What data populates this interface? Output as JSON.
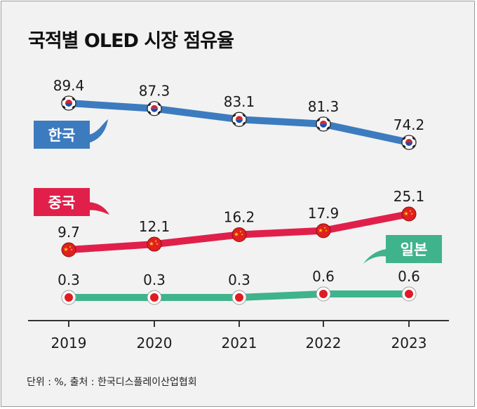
{
  "title": "국적별 OLED 시장 점유율",
  "footnote": "단위 : %, 출처 : 한국디스플레이산업협회",
  "colors": {
    "korea": "#3d7bbf",
    "china": "#e0204a",
    "japan": "#3fb38c",
    "axis": "#333333"
  },
  "chart_data": {
    "type": "line",
    "title": "국적별 OLED 시장 점유율",
    "xlabel": "",
    "ylabel": "",
    "categories": [
      "2019",
      "2020",
      "2021",
      "2022",
      "2023"
    ],
    "series": [
      {
        "key": "korea",
        "name": "한국",
        "values": [
          89.4,
          87.3,
          83.1,
          81.3,
          74.2
        ],
        "labels": [
          "89.4",
          "87.3",
          "83.1",
          "81.3",
          "74.2"
        ],
        "marker": "korea-flag"
      },
      {
        "key": "china",
        "name": "중국",
        "values": [
          9.7,
          12.1,
          16.2,
          17.9,
          25.1
        ],
        "labels": [
          "9.7",
          "12.1",
          "16.2",
          "17.9",
          "25.1"
        ],
        "marker": "china-flag"
      },
      {
        "key": "japan",
        "name": "일본",
        "values": [
          0.3,
          0.3,
          0.3,
          0.6,
          0.6
        ],
        "labels": [
          "0.3",
          "0.3",
          "0.3",
          "0.6",
          "0.6"
        ],
        "marker": "japan-flag"
      }
    ]
  }
}
